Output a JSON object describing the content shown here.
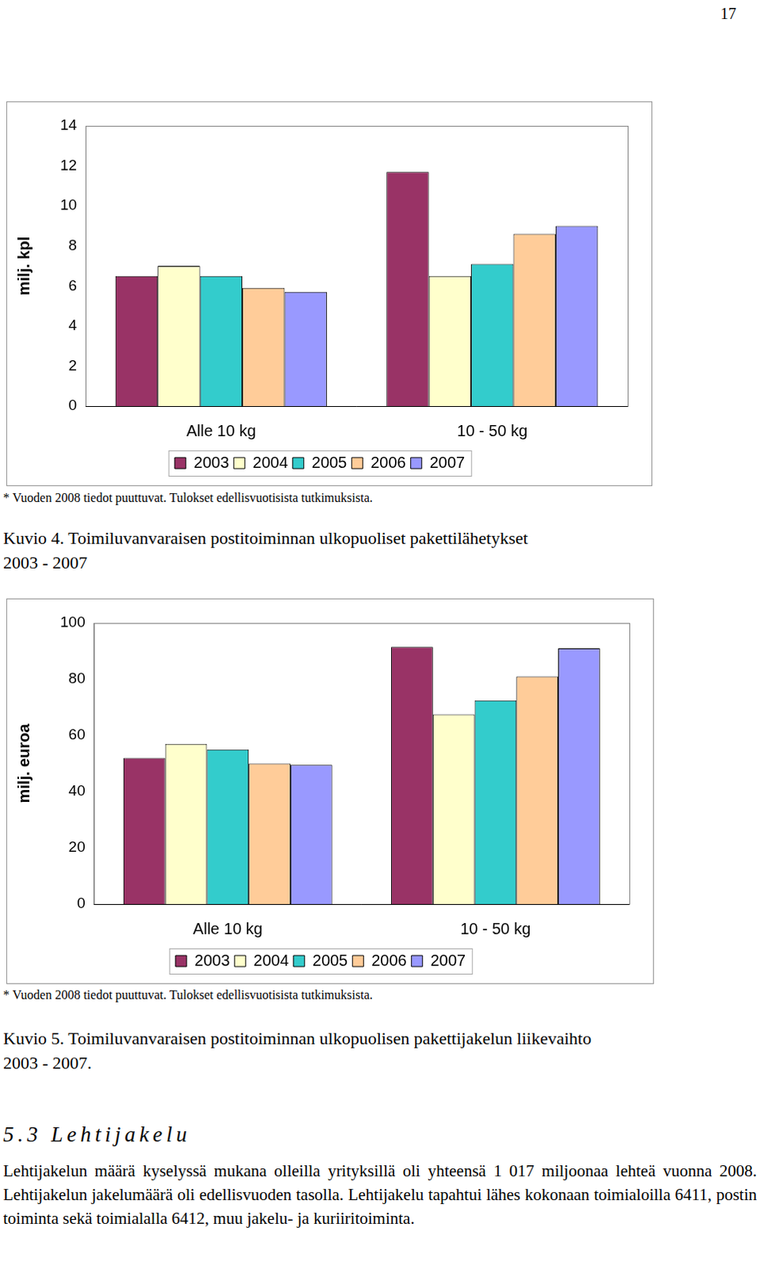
{
  "page_number": "17",
  "chart_data": [
    {
      "type": "bar",
      "y_label": "milj. kpl",
      "categories": [
        "Alle 10 kg",
        "10 - 50 kg"
      ],
      "series": [
        {
          "name": "2003",
          "color": "#993366",
          "values": [
            6.5,
            11.7
          ]
        },
        {
          "name": "2004",
          "color": "#FFFFCC",
          "values": [
            7.0,
            6.5
          ]
        },
        {
          "name": "2005",
          "color": "#33CCCC",
          "values": [
            6.5,
            7.1
          ]
        },
        {
          "name": "2006",
          "color": "#FFCC99",
          "values": [
            5.9,
            8.6
          ]
        },
        {
          "name": "2007",
          "color": "#9999FF",
          "values": [
            5.7,
            9.0
          ]
        }
      ],
      "ylim": [
        0,
        14
      ],
      "yticks": [
        0,
        2,
        4,
        6,
        8,
        10,
        12,
        14
      ],
      "grid": false,
      "legend": "bottom"
    },
    {
      "type": "bar",
      "y_label": "milj. euroa",
      "categories": [
        "Alle 10 kg",
        "10 - 50 kg"
      ],
      "series": [
        {
          "name": "2003",
          "color": "#993366",
          "values": [
            52,
            91.5
          ]
        },
        {
          "name": "2004",
          "color": "#FFFFCC",
          "values": [
            57,
            67.5
          ]
        },
        {
          "name": "2005",
          "color": "#33CCCC",
          "values": [
            55,
            72.5
          ]
        },
        {
          "name": "2006",
          "color": "#FFCC99",
          "values": [
            50,
            81
          ]
        },
        {
          "name": "2007",
          "color": "#9999FF",
          "values": [
            49.5,
            91
          ]
        }
      ],
      "ylim": [
        0,
        100
      ],
      "yticks": [
        0,
        20,
        40,
        60,
        80,
        100
      ],
      "grid": false,
      "legend": "bottom"
    }
  ],
  "figures": [
    {
      "note": "* Vuoden 2008 tiedot puuttuvat. Tulokset edellisvuotisista tutkimuksista.",
      "caption": [
        "Kuvio 4. Toimiluvanvaraisen postitoiminnan ulkopuoliset pakettilähetykset",
        "2003 - 2007"
      ]
    },
    {
      "note": "* Vuoden 2008 tiedot puuttuvat. Tulokset edellisvuotisista tutkimuksista.",
      "caption": [
        "Kuvio 5. Toimiluvanvaraisen postitoiminnan ulkopuolisen pakettijakelun liikevaihto",
        "2003 - 2007."
      ]
    }
  ],
  "section": {
    "heading": "5.3 Lehtijakelu",
    "text": "Lehtijakelun määrä kyselyssä mukana olleilla yrityksillä oli yhteensä 1 017 miljoonaa lehteä vuonna 2008. Lehtijakelun jakelumäärä oli edellisvuoden tasolla. Lehtijakelu tapahtui lähes kokonaan toimialoilla 6411, postin toiminta sekä toimialalla 6412, muu jakelu- ja kuriiritoiminta."
  }
}
